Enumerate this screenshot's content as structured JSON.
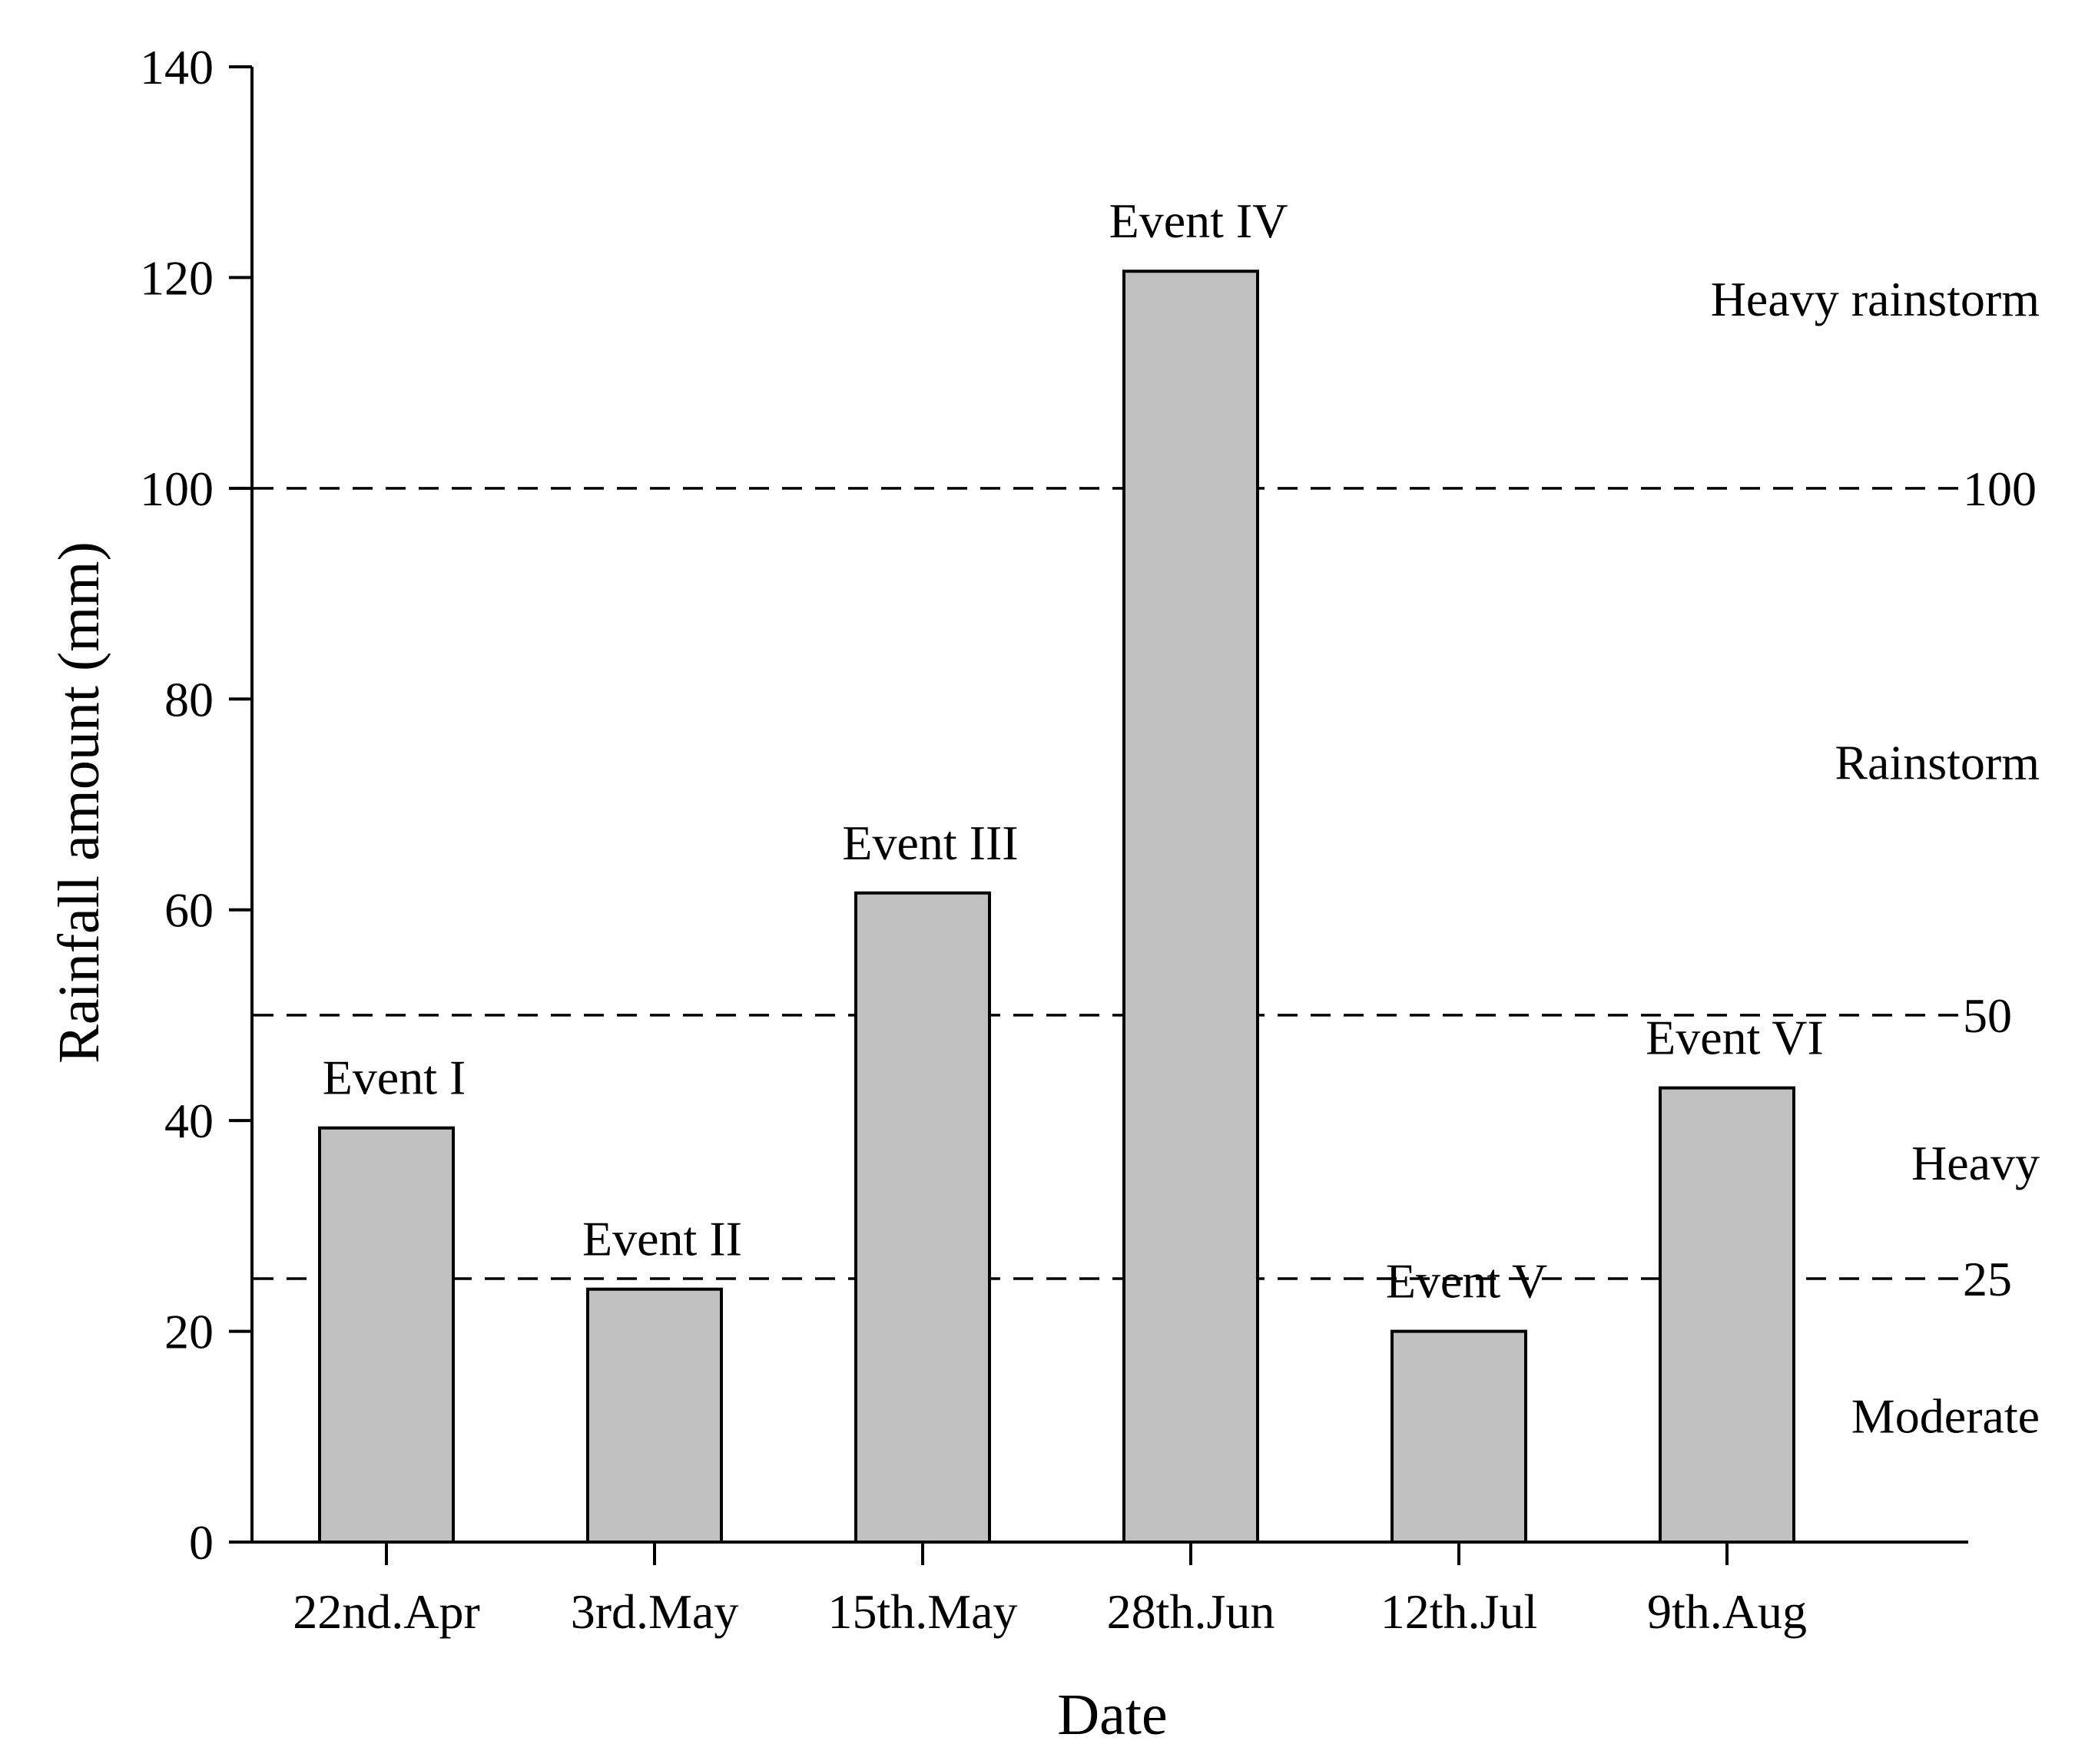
{
  "chart_data": {
    "type": "bar",
    "xlabel": "Date",
    "ylabel": "Rainfall amount (mm)",
    "ylim": [
      0,
      140
    ],
    "yticks": [
      0,
      20,
      40,
      60,
      80,
      100,
      120,
      140
    ],
    "categories": [
      "22nd.Apr",
      "3rd.May",
      "15th.May",
      "28th.Jun",
      "12th.Jul",
      "9th.Aug"
    ],
    "values": [
      39.3,
      24.0,
      61.6,
      120.6,
      20.0,
      43.1
    ],
    "bar_labels": [
      "Event I",
      "Event II",
      "Event III",
      "Event IV",
      "Event V",
      "Event VI"
    ],
    "thresholds": [
      {
        "value": 25,
        "label": "25"
      },
      {
        "value": 50,
        "label": "50"
      },
      {
        "value": 100,
        "label": "100"
      }
    ],
    "bands": [
      {
        "label": "Moderate",
        "y": 12
      },
      {
        "label": "Heavy",
        "y": 36
      },
      {
        "label": "Rainstorm",
        "y": 74
      },
      {
        "label": "Heavy rainstorm",
        "y": 118
      }
    ],
    "bar_color": "#c0c0c0",
    "bar_edge_color": "#000000",
    "grid": false
  }
}
